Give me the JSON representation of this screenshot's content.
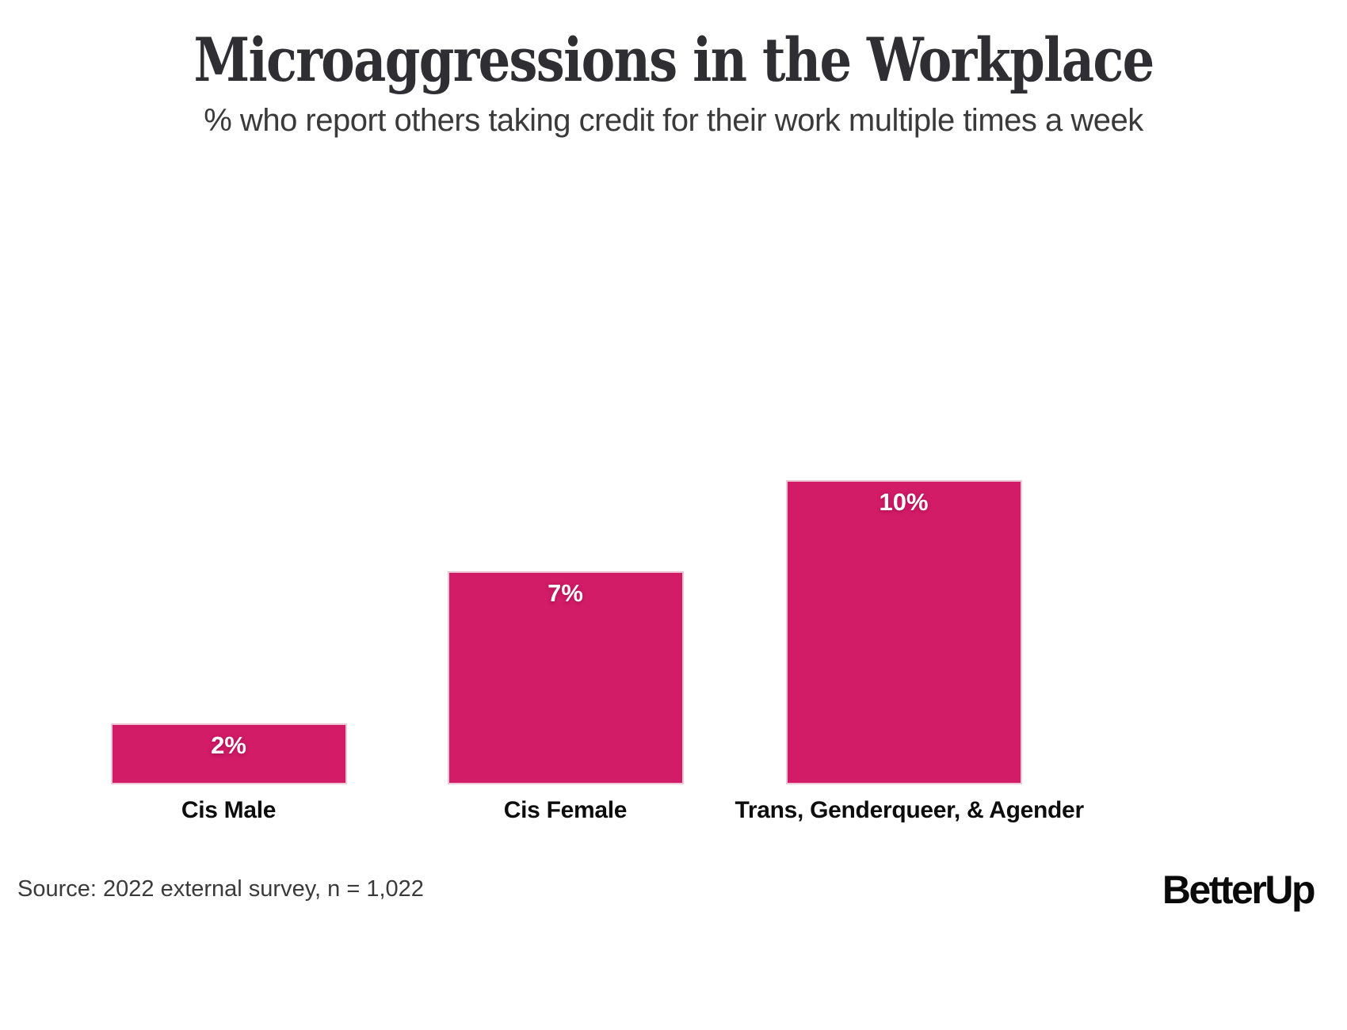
{
  "header": {
    "title": "Microaggressions in the Workplace",
    "subtitle": "% who report others taking credit for their work multiple times a week"
  },
  "chart_data": {
    "type": "bar",
    "categories": [
      "Cis Male",
      "Cis Female",
      "Trans, Genderqueer, & Agender"
    ],
    "values": [
      2,
      7,
      10
    ],
    "value_labels": [
      "2%",
      "7%",
      "10%"
    ],
    "title": "Microaggressions in the Workplace",
    "subtitle": "% who report others taking credit for their work multiple times a week",
    "xlabel": "",
    "ylabel": "",
    "ylim": [
      0,
      10.5
    ],
    "grid": false,
    "legend": false,
    "bar_color": "#d21c68",
    "bar_border_color": "#ecc7d6",
    "value_label_color": "#ffffff",
    "value_label_position": "inside-top"
  },
  "footer": {
    "source": "Source: 2022 external survey, n = 1,022",
    "logo": "BetterUp"
  }
}
